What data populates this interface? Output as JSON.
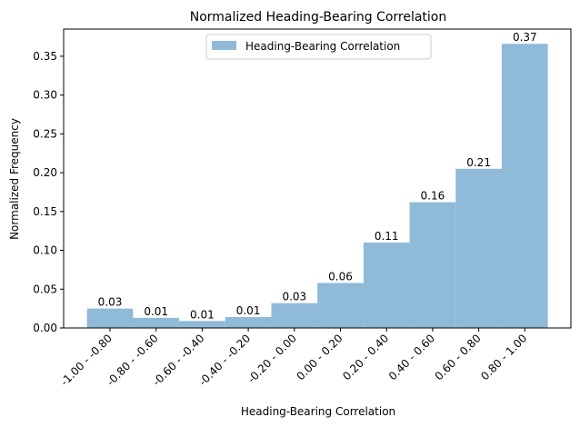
{
  "chart_data": {
    "type": "bar",
    "title": "Normalized Heading-Bearing Correlation",
    "xlabel": "Heading-Bearing Correlation",
    "ylabel": "Normalized Frequency",
    "categories": [
      "-1.00 - -0.80",
      "-0.80 - -0.60",
      "-0.60 - -0.40",
      "-0.40 - -0.20",
      "-0.20 - 0.00",
      "0.00 - 0.20",
      "0.20 - 0.40",
      "0.40 - 0.60",
      "0.60 - 0.80",
      "0.80 - 1.00"
    ],
    "series": [
      {
        "name": "Heading-Bearing Correlation",
        "color": "#8fbad8",
        "values": [
          0.025,
          0.013,
          0.009,
          0.014,
          0.032,
          0.058,
          0.11,
          0.162,
          0.205,
          0.366
        ],
        "labels": [
          "0.03",
          "0.01",
          "0.01",
          "0.01",
          "0.03",
          "0.06",
          "0.11",
          "0.16",
          "0.21",
          "0.37"
        ]
      }
    ],
    "ylim": [
      0,
      0.385
    ],
    "yticks": [
      0.0,
      0.05,
      0.1,
      0.15,
      0.2,
      0.25,
      0.3,
      0.35
    ],
    "ytick_labels": [
      "0.00",
      "0.05",
      "0.10",
      "0.15",
      "0.20",
      "0.25",
      "0.30",
      "0.35"
    ],
    "legend_position": "top-center",
    "grid": false
  }
}
